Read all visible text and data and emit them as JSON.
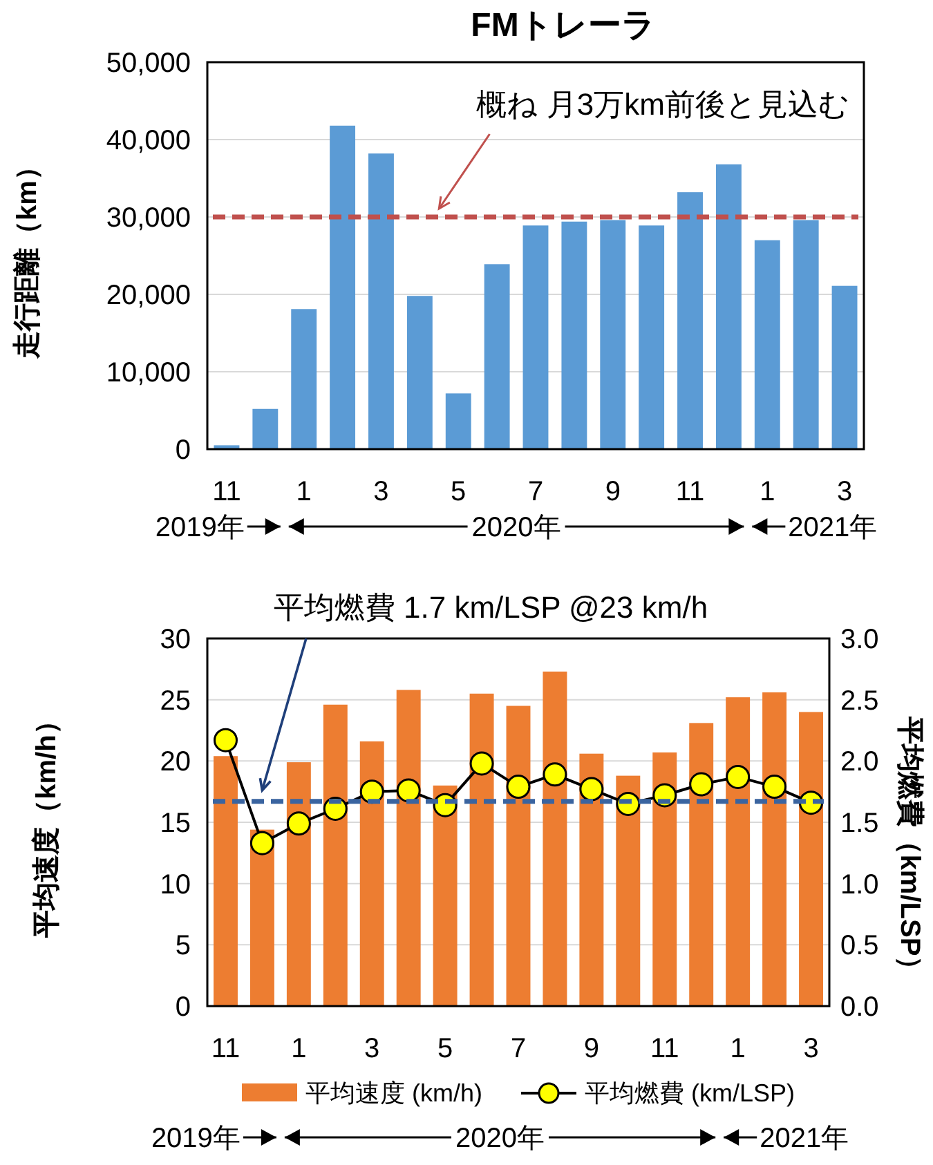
{
  "chart_data": [
    {
      "type": "bar",
      "title": "FMトレーラ",
      "ylabel": "走行距離（km）",
      "categories": [
        "11",
        null,
        "1",
        null,
        "3",
        null,
        "5",
        null,
        "7",
        null,
        "9",
        null,
        "11",
        null,
        "1",
        null,
        "3"
      ],
      "values": [
        500,
        5200,
        18100,
        41800,
        38200,
        19800,
        7200,
        23900,
        28900,
        29400,
        29600,
        28900,
        33200,
        36800,
        27000,
        29600,
        21100
      ],
      "color": "#5b9bd5",
      "ylim": [
        0,
        50000
      ],
      "yticks": [
        {
          "value": 0,
          "label": "0"
        },
        {
          "value": 10000,
          "label": "10,000"
        },
        {
          "value": 20000,
          "label": "20,000"
        },
        {
          "value": 30000,
          "label": "30,000"
        },
        {
          "value": 40000,
          "label": "40,000"
        },
        {
          "value": 50000,
          "label": "50,000"
        }
      ],
      "grid": "y",
      "ref_lines": [
        {
          "axis": "y",
          "value": 30000,
          "color": "#c0504d",
          "line_style": "dashed"
        }
      ],
      "annotations": [
        "概ね 月3万km前後と見込む",
        "2019年",
        "2020年",
        "2021年"
      ]
    },
    {
      "type": "bar",
      "ylabel": "平均速度（km/h）",
      "y2label": "平均燃費（km/LSP）",
      "categories": [
        "11",
        null,
        "1",
        null,
        "3",
        null,
        "5",
        null,
        "7",
        null,
        "9",
        null,
        "11",
        null,
        "1",
        null,
        "3"
      ],
      "series": [
        {
          "name": "平均速度 (km/h)",
          "type": "bar",
          "color": "#ed7d31",
          "values": [
            20.4,
            14.4,
            19.9,
            24.6,
            21.6,
            25.8,
            18.0,
            25.5,
            24.5,
            27.3,
            20.6,
            18.8,
            20.7,
            23.1,
            25.2,
            25.6,
            24.0
          ]
        },
        {
          "name": "平均燃費 (km/LSP)",
          "type": "line",
          "axis": "y2",
          "color": "#ffff00",
          "marker": "circle",
          "values": [
            2.17,
            1.33,
            1.49,
            1.61,
            1.75,
            1.76,
            1.64,
            1.98,
            1.79,
            1.89,
            1.77,
            1.65,
            1.72,
            1.81,
            1.87,
            1.79,
            1.66
          ]
        }
      ],
      "ylim": [
        0,
        30
      ],
      "yticks": [
        0,
        5,
        10,
        15,
        20,
        25,
        30
      ],
      "y2lim": [
        0,
        3
      ],
      "y2ticks": [
        {
          "value": 0,
          "label": "0.0"
        },
        {
          "value": 0.5,
          "label": "0.5"
        },
        {
          "value": 1,
          "label": "1.0"
        },
        {
          "value": 1.5,
          "label": "1.5"
        },
        {
          "value": 2,
          "label": "2.0"
        },
        {
          "value": 2.5,
          "label": "2.5"
        },
        {
          "value": 3,
          "label": "3.0"
        }
      ],
      "grid": "y",
      "legend": "bottom",
      "ref_lines": [
        {
          "axis": "y2",
          "value": 1.67,
          "color": "#3a64a0",
          "line_style": "dashed"
        }
      ],
      "annotations": [
        "平均燃費 1.7 km/LSP @23 km/h",
        "2019年",
        "2020年",
        "2021年"
      ]
    }
  ]
}
